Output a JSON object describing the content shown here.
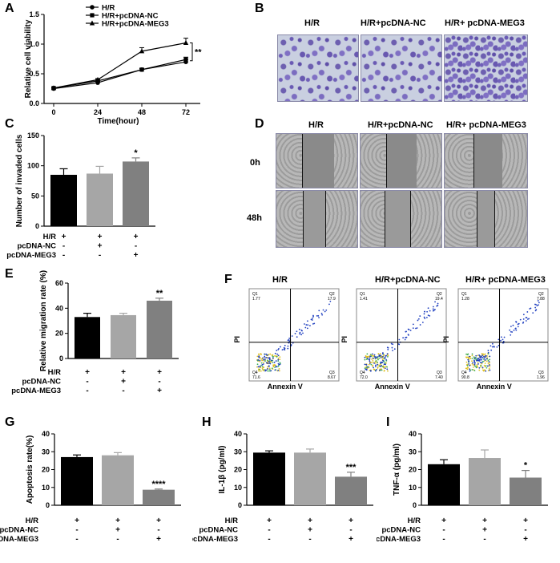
{
  "figure": {
    "panel_letters": [
      "A",
      "B",
      "C",
      "D",
      "E",
      "F",
      "G",
      "H",
      "I"
    ],
    "groups": [
      "H/R",
      "H/R+pcDNA-NC",
      "H/R+ pcDNA-MEG3"
    ],
    "rows": [
      "H/R",
      "pcDNA-NC",
      "pcDNA-MEG3"
    ],
    "signs": [
      [
        "+",
        "+",
        "+"
      ],
      [
        "-",
        "+",
        "-"
      ],
      [
        "-",
        "-",
        "+"
      ]
    ],
    "d_times": [
      "0h",
      "48h"
    ],
    "f_axes": {
      "x": "Annexin V",
      "y": "PI"
    },
    "f_quadrants": [
      {
        "q1": "Q1",
        "q1v": "1.77",
        "q2": "Q2",
        "q2v": "17.9",
        "q3": "Q3",
        "q3v": "8.67",
        "q4": "Q4",
        "q4v": "71.6"
      },
      {
        "q1": "Q1",
        "q1v": "1.41",
        "q2": "Q2",
        "q2v": "19.4",
        "q3": "Q3",
        "q3v": "7.40",
        "q4": "Q4",
        "q4v": "72.0"
      },
      {
        "q1": "Q1",
        "q1v": "1.28",
        "q2": "Q2",
        "q2v": "7.88",
        "q3": "Q3",
        "q3v": "1.96",
        "q4": "Q4",
        "q4v": "90.8"
      }
    ]
  },
  "chart_data": [
    {
      "panel": "A",
      "type": "line",
      "xlabel": "Time(hour)",
      "ylabel": "Relative cell viability",
      "x": [
        0,
        24,
        48,
        72
      ],
      "xlim": [
        0,
        72
      ],
      "ylim": [
        0,
        1.5
      ],
      "yticks": [
        "0.0",
        "0.5",
        "1.0",
        "1.5"
      ],
      "xticks": [
        "0",
        "24",
        "48",
        "72"
      ],
      "series": [
        {
          "name": "H/R",
          "values": [
            0.25,
            0.35,
            0.57,
            0.7
          ],
          "err": [
            0.01,
            0.02,
            0.02,
            0.04
          ]
        },
        {
          "name": "H/R+pcDNA-NC",
          "values": [
            0.26,
            0.38,
            0.57,
            0.74
          ],
          "err": [
            0.01,
            0.02,
            0.02,
            0.04
          ]
        },
        {
          "name": "H/R+pcDNA-MEG3",
          "values": [
            0.26,
            0.4,
            0.88,
            1.02
          ],
          "err": [
            0.01,
            0.02,
            0.06,
            0.08
          ]
        }
      ],
      "annotation": "**"
    },
    {
      "panel": "C",
      "type": "bar",
      "ylabel": "Number of invaded cells",
      "ylim": [
        0,
        150
      ],
      "yticks": [
        "0",
        "50",
        "100",
        "150"
      ],
      "values": [
        85,
        87,
        107
      ],
      "err": [
        10,
        12,
        6
      ],
      "annotations": [
        "",
        "",
        "*"
      ],
      "colors": [
        "#000000",
        "#a6a6a6",
        "#808080"
      ]
    },
    {
      "panel": "E",
      "type": "bar",
      "ylabel": "Relative migration rate (%)",
      "ylim": [
        0,
        60
      ],
      "yticks": [
        "0",
        "20",
        "40",
        "60"
      ],
      "values": [
        33,
        34.5,
        46
      ],
      "err": [
        3,
        1.5,
        2
      ],
      "annotations": [
        "",
        "",
        "**"
      ],
      "colors": [
        "#000000",
        "#a6a6a6",
        "#808080"
      ]
    },
    {
      "panel": "G",
      "type": "bar",
      "ylabel": "Apoptosis rate(%)",
      "ylim": [
        0,
        40
      ],
      "yticks": [
        "0",
        "10",
        "20",
        "30",
        "40"
      ],
      "values": [
        27,
        28,
        8.7
      ],
      "err": [
        1.2,
        1.5,
        0.4
      ],
      "annotations": [
        "",
        "",
        "****"
      ],
      "colors": [
        "#000000",
        "#a6a6a6",
        "#808080"
      ]
    },
    {
      "panel": "H",
      "type": "bar",
      "ylabel": "IL-1β (pg/ml)",
      "ylim": [
        0,
        40
      ],
      "yticks": [
        "0",
        "10",
        "20",
        "30",
        "40"
      ],
      "values": [
        29.5,
        29.5,
        16
      ],
      "err": [
        1,
        2,
        2.5
      ],
      "annotations": [
        "",
        "",
        "***"
      ],
      "colors": [
        "#000000",
        "#a6a6a6",
        "#808080"
      ]
    },
    {
      "panel": "I",
      "type": "bar",
      "ylabel": "TNF-α (pg/ml)",
      "ylim": [
        0,
        40
      ],
      "yticks": [
        "0",
        "10",
        "20",
        "30",
        "40"
      ],
      "values": [
        23,
        26.5,
        15.5
      ],
      "err": [
        2.5,
        4.5,
        4
      ],
      "annotations": [
        "",
        "",
        "*"
      ],
      "colors": [
        "#000000",
        "#a6a6a6",
        "#808080"
      ]
    }
  ]
}
